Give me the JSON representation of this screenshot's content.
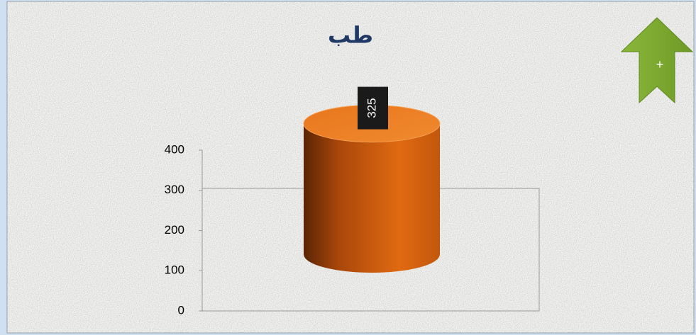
{
  "chart_data": {
    "type": "cylinder",
    "title": "طب",
    "categories": [
      null
    ],
    "values": [
      325
    ],
    "color": "#d9650f",
    "ylim": [
      0,
      400
    ],
    "yticks": [
      0,
      100,
      200,
      300,
      400
    ],
    "grid": false
  },
  "nav_button": {
    "label": "+"
  }
}
